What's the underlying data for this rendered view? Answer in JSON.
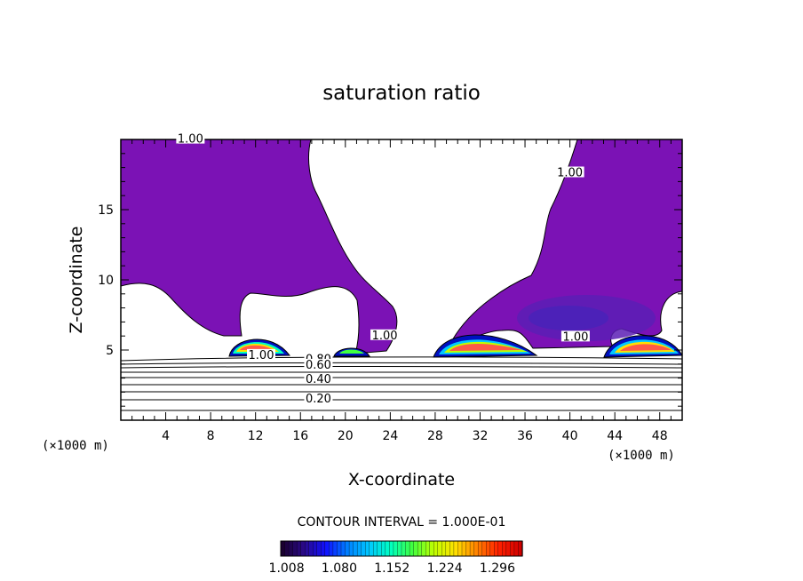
{
  "chart_data": {
    "type": "contour",
    "title": "saturation ratio",
    "xlabel": "X-coordinate",
    "ylabel": "Z-coordinate",
    "x_unit": "(×1000 m)",
    "y_unit": "(×1000 m)",
    "xlim": [
      0,
      50
    ],
    "ylim": [
      0,
      20
    ],
    "x_ticks": [
      4,
      8,
      12,
      16,
      20,
      24,
      28,
      32,
      36,
      40,
      44,
      48
    ],
    "y_ticks": [
      5,
      10,
      15
    ],
    "contour_labels": [
      {
        "text": "1.00",
        "x": 6.2,
        "z": 19.9
      },
      {
        "text": "1.00",
        "x": 40.0,
        "z": 17.5
      },
      {
        "text": "1.00",
        "x": 23.5,
        "z": 5.9
      },
      {
        "text": "1.00",
        "x": 40.5,
        "z": 5.8
      },
      {
        "text": "1.00",
        "x": 12.5,
        "z": 4.5
      },
      {
        "text": "0.80",
        "x": 17.6,
        "z": 4.2
      },
      {
        "text": "0.60",
        "x": 17.6,
        "z": 3.8
      },
      {
        "text": "0.40",
        "x": 17.6,
        "z": 2.8
      },
      {
        "text": "0.20",
        "x": 17.6,
        "z": 1.4
      }
    ],
    "contour_interval_text": "CONTOUR INTERVAL = 1.000E-01",
    "colorbar": {
      "labels": [
        "1.008",
        "1.080",
        "1.152",
        "1.224",
        "1.296"
      ],
      "range": [
        1.0,
        1.33
      ],
      "colors": [
        "#1a0030",
        "#2a0a8a",
        "#1010ff",
        "#0080ff",
        "#00c8ff",
        "#00ffc0",
        "#40ff40",
        "#c0ff00",
        "#ffe000",
        "#ff8000",
        "#ff2000",
        "#d00000"
      ]
    },
    "colors": {
      "saturated": "#7b12b5",
      "deep": "#5c1fb5",
      "core": "#ff5a48"
    }
  }
}
